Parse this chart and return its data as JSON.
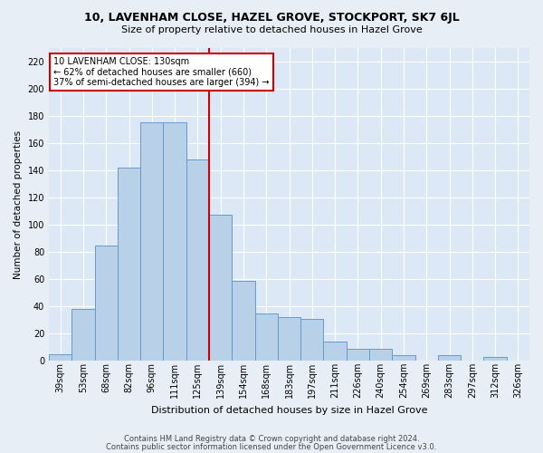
{
  "title": "10, LAVENHAM CLOSE, HAZEL GROVE, STOCKPORT, SK7 6JL",
  "subtitle": "Size of property relative to detached houses in Hazel Grove",
  "xlabel": "Distribution of detached houses by size in Hazel Grove",
  "ylabel": "Number of detached properties",
  "bar_labels": [
    "39sqm",
    "53sqm",
    "68sqm",
    "82sqm",
    "96sqm",
    "111sqm",
    "125sqm",
    "139sqm",
    "154sqm",
    "168sqm",
    "183sqm",
    "197sqm",
    "211sqm",
    "226sqm",
    "240sqm",
    "254sqm",
    "269sqm",
    "283sqm",
    "297sqm",
    "312sqm",
    "326sqm"
  ],
  "bar_values": [
    5,
    38,
    85,
    142,
    175,
    175,
    148,
    107,
    59,
    35,
    32,
    31,
    14,
    9,
    9,
    4,
    0,
    4,
    0,
    3,
    0
  ],
  "bar_color": "#b8d0e8",
  "bar_edge_color": "#6699cc",
  "highlight_line_color": "#cc0000",
  "annotation_box_text": "10 LAVENHAM CLOSE: 130sqm\n← 62% of detached houses are smaller (660)\n37% of semi-detached houses are larger (394) →",
  "annotation_box_edge_color": "#cc0000",
  "ylim": [
    0,
    230
  ],
  "yticks": [
    0,
    20,
    40,
    60,
    80,
    100,
    120,
    140,
    160,
    180,
    200,
    220
  ],
  "footer_line1": "Contains HM Land Registry data © Crown copyright and database right 2024.",
  "footer_line2": "Contains public sector information licensed under the Open Government Licence v3.0.",
  "bg_color": "#e8eef5",
  "plot_bg_color": "#dce8f5",
  "title_fontsize": 9,
  "subtitle_fontsize": 8,
  "xlabel_fontsize": 8,
  "ylabel_fontsize": 7.5,
  "tick_fontsize": 7,
  "annotation_fontsize": 7,
  "footer_fontsize": 6
}
